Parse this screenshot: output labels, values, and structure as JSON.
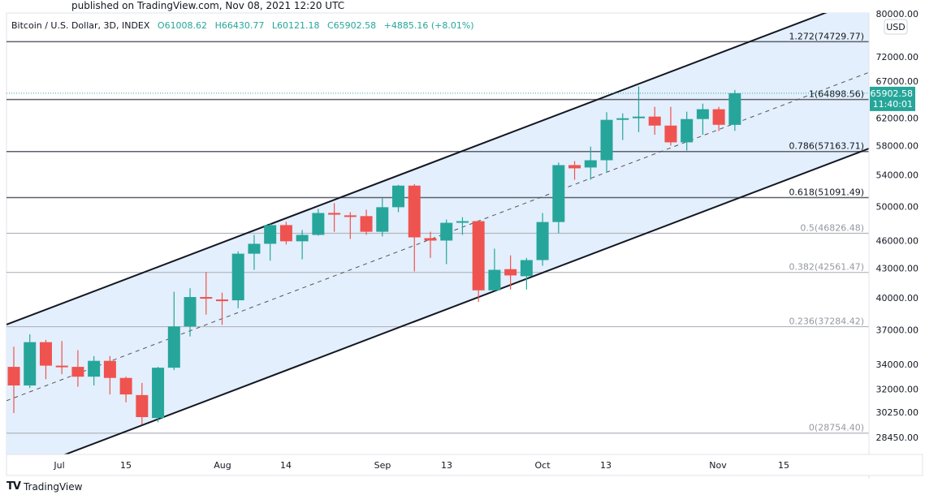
{
  "header": {
    "published": "published on TradingView.com, Nov 08, 2021 12:20 UTC",
    "symbol": "Bitcoin / U.S. Dollar, 3D, INDEX",
    "open": "O61008.62",
    "high": "H66430.77",
    "low": "L60121.18",
    "close": "C65902.58",
    "change": "+4885.16 (+8.01%)"
  },
  "footer": {
    "brand": "TradingView",
    "logo": "TV"
  },
  "colors": {
    "up": "#26a69a",
    "down": "#ef5350",
    "channel_fill": "#e3effc",
    "fib_major": "#5d606b",
    "fib_minor": "#b2b5be"
  },
  "chart_data": {
    "type": "candlestick",
    "title": "",
    "y_scale": "log",
    "currency": "USD",
    "ylim": [
      27800,
      80000
    ],
    "y_ticks": [
      "80000.00",
      "72000.00",
      "67000.00",
      "62000.00",
      "58000.00",
      "54000.00",
      "50000.00",
      "46000.00",
      "43000.00",
      "40000.00",
      "37000.00",
      "34000.00",
      "32000.00",
      "30250.00",
      "28450.00"
    ],
    "x_ticks": [
      "Jul",
      "15",
      "Aug",
      "14",
      "Sep",
      "13",
      "Oct",
      "13",
      "Nov",
      "15"
    ],
    "last_price": "65902.58",
    "countdown": "11:40:01",
    "fib_levels": [
      {
        "label": "1.272(74729.77)",
        "price": 74729.77,
        "major": true
      },
      {
        "label": "1(64898.56)",
        "price": 64898.56,
        "major": true
      },
      {
        "label": "0.786(57163.71)",
        "price": 57163.71,
        "major": true
      },
      {
        "label": "0.618(51091.49)",
        "price": 51091.49,
        "major": true
      },
      {
        "label": "0.5(46826.48)",
        "price": 46826.48,
        "major": false
      },
      {
        "label": "0.382(42561.47)",
        "price": 42561.47,
        "major": false
      },
      {
        "label": "0.236(37284.42)",
        "price": 37284.42,
        "major": false
      },
      {
        "label": "0(28754.40)",
        "price": 28754.4,
        "major": false
      }
    ],
    "candles_ohlc": [
      [
        33800,
        35500,
        30200,
        32300
      ],
      [
        32300,
        36600,
        32100,
        35900
      ],
      [
        35900,
        36100,
        32800,
        33900
      ],
      [
        33900,
        36000,
        33200,
        33800
      ],
      [
        33800,
        35200,
        32200,
        33000
      ],
      [
        33000,
        34700,
        32300,
        34300
      ],
      [
        34300,
        34700,
        31600,
        32900
      ],
      [
        32900,
        33000,
        31000,
        31600
      ],
      [
        31550,
        32500,
        29360,
        29900
      ],
      [
        29830,
        33800,
        29530,
        33730
      ],
      [
        33730,
        40600,
        33530,
        37300
      ],
      [
        37300,
        40950,
        36400,
        40080
      ],
      [
        40080,
        42600,
        38400,
        39920
      ],
      [
        39840,
        40500,
        37450,
        39680
      ],
      [
        39760,
        44800,
        39000,
        44550
      ],
      [
        44550,
        46640,
        42830,
        45640
      ],
      [
        45640,
        47960,
        43800,
        47770
      ],
      [
        47770,
        48150,
        45560,
        45920
      ],
      [
        45920,
        47200,
        43940,
        46640
      ],
      [
        46640,
        49700,
        46550,
        49200
      ],
      [
        49210,
        50400,
        47000,
        49000
      ],
      [
        48920,
        49300,
        46180,
        48830
      ],
      [
        48830,
        49600,
        46640,
        47000
      ],
      [
        47000,
        51000,
        46460,
        49900
      ],
      [
        49900,
        52700,
        49300,
        52600
      ],
      [
        52600,
        52800,
        42660,
        46360
      ],
      [
        46270,
        47000,
        44100,
        46000
      ],
      [
        46000,
        48420,
        43430,
        48040
      ],
      [
        48040,
        48700,
        46640,
        48230
      ],
      [
        48230,
        48330,
        39600,
        40740
      ],
      [
        40740,
        45100,
        40700,
        42830
      ],
      [
        42900,
        44370,
        40820,
        42250
      ],
      [
        42170,
        44100,
        40820,
        43860
      ],
      [
        43860,
        49200,
        43260,
        48130
      ],
      [
        48130,
        55650,
        46820,
        55300
      ],
      [
        55300,
        55850,
        53360,
        54870
      ],
      [
        54980,
        57850,
        53360,
        55960
      ],
      [
        55960,
        62920,
        54320,
        61760
      ],
      [
        61880,
        62750,
        58800,
        62000
      ],
      [
        62120,
        67000,
        59940,
        62250
      ],
      [
        62250,
        63750,
        59550,
        60900
      ],
      [
        60900,
        63750,
        58000,
        58460
      ],
      [
        58460,
        63000,
        57300,
        61880
      ],
      [
        61880,
        64250,
        59550,
        63380
      ],
      [
        63380,
        63750,
        60100,
        61017
      ],
      [
        61008.62,
        66430.77,
        60121.18,
        65902.58
      ]
    ]
  }
}
